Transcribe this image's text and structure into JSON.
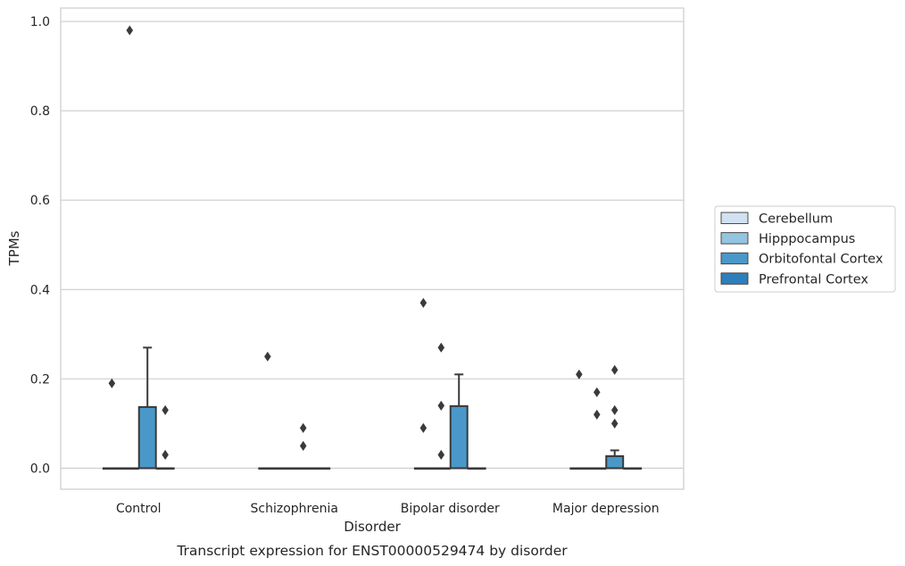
{
  "chart_data": {
    "type": "box",
    "title": "",
    "caption": "Transcript expression for ENST00000529474 by disorder",
    "xlabel": "Disorder",
    "ylabel": "TPMs",
    "ylim": [
      -0.047,
      1.03
    ],
    "yticks": [
      0.0,
      0.2,
      0.4,
      0.6,
      0.8,
      1.0
    ],
    "ytick_labels": [
      "0.0",
      "0.2",
      "0.4",
      "0.6",
      "0.8",
      "1.0"
    ],
    "grid": "horizontal",
    "legend_position": "right",
    "categories": [
      "Control",
      "Schizophrenia",
      "Bipolar disorder",
      "Major depression"
    ],
    "series": [
      {
        "name": "Cerebellum",
        "color": "#d0e1f2",
        "boxes": [
          {
            "q1": 0,
            "median": 0,
            "q3": 0,
            "whisker_low": 0,
            "whisker_high": 0,
            "outliers": [
              0.19
            ]
          },
          {
            "q1": 0,
            "median": 0,
            "q3": 0,
            "whisker_low": 0,
            "whisker_high": 0,
            "outliers": [
              0.25
            ]
          },
          {
            "q1": 0,
            "median": 0,
            "q3": 0,
            "whisker_low": 0,
            "whisker_high": 0,
            "outliers": [
              0.37,
              0.09
            ]
          },
          {
            "q1": 0,
            "median": 0,
            "q3": 0,
            "whisker_low": 0,
            "whisker_high": 0,
            "outliers": [
              0.21
            ]
          }
        ]
      },
      {
        "name": "Hipppocampus",
        "color": "#94c4df",
        "boxes": [
          {
            "q1": 0,
            "median": 0,
            "q3": 0,
            "whisker_low": 0,
            "whisker_high": 0,
            "outliers": [
              0.98
            ]
          },
          {
            "q1": 0,
            "median": 0,
            "q3": 0,
            "whisker_low": 0,
            "whisker_high": 0,
            "outliers": []
          },
          {
            "q1": 0,
            "median": 0,
            "q3": 0,
            "whisker_low": 0,
            "whisker_high": 0,
            "outliers": [
              0.27,
              0.14,
              0.03
            ]
          },
          {
            "q1": 0,
            "median": 0,
            "q3": 0,
            "whisker_low": 0,
            "whisker_high": 0,
            "outliers": [
              0.17,
              0.12
            ]
          }
        ]
      },
      {
        "name": "Orbitofontal Cortex",
        "color": "#4a98c9",
        "boxes": [
          {
            "q1": 0,
            "median": 0,
            "q3": 0.137,
            "whisker_low": 0,
            "whisker_high": 0.27,
            "outliers": []
          },
          {
            "q1": 0,
            "median": 0,
            "q3": 0,
            "whisker_low": 0,
            "whisker_high": 0,
            "outliers": [
              0.09,
              0.05
            ]
          },
          {
            "q1": 0,
            "median": 0,
            "q3": 0.139,
            "whisker_low": 0,
            "whisker_high": 0.21,
            "outliers": []
          },
          {
            "q1": 0,
            "median": 0,
            "q3": 0.027,
            "whisker_low": 0,
            "whisker_high": 0.04,
            "outliers": [
              0.22,
              0.13,
              0.1
            ]
          }
        ]
      },
      {
        "name": "Prefrontal Cortex",
        "color": "#2e7ebc",
        "boxes": [
          {
            "q1": 0,
            "median": 0,
            "q3": 0,
            "whisker_low": 0,
            "whisker_high": 0,
            "outliers": [
              0.13,
              0.03
            ]
          },
          {
            "q1": 0,
            "median": 0,
            "q3": 0,
            "whisker_low": 0,
            "whisker_high": 0,
            "outliers": []
          },
          {
            "q1": 0,
            "median": 0,
            "q3": 0,
            "whisker_low": 0,
            "whisker_high": 0,
            "outliers": []
          },
          {
            "q1": 0,
            "median": 0,
            "q3": 0,
            "whisker_low": 0,
            "whisker_high": 0,
            "outliers": []
          }
        ]
      }
    ]
  }
}
